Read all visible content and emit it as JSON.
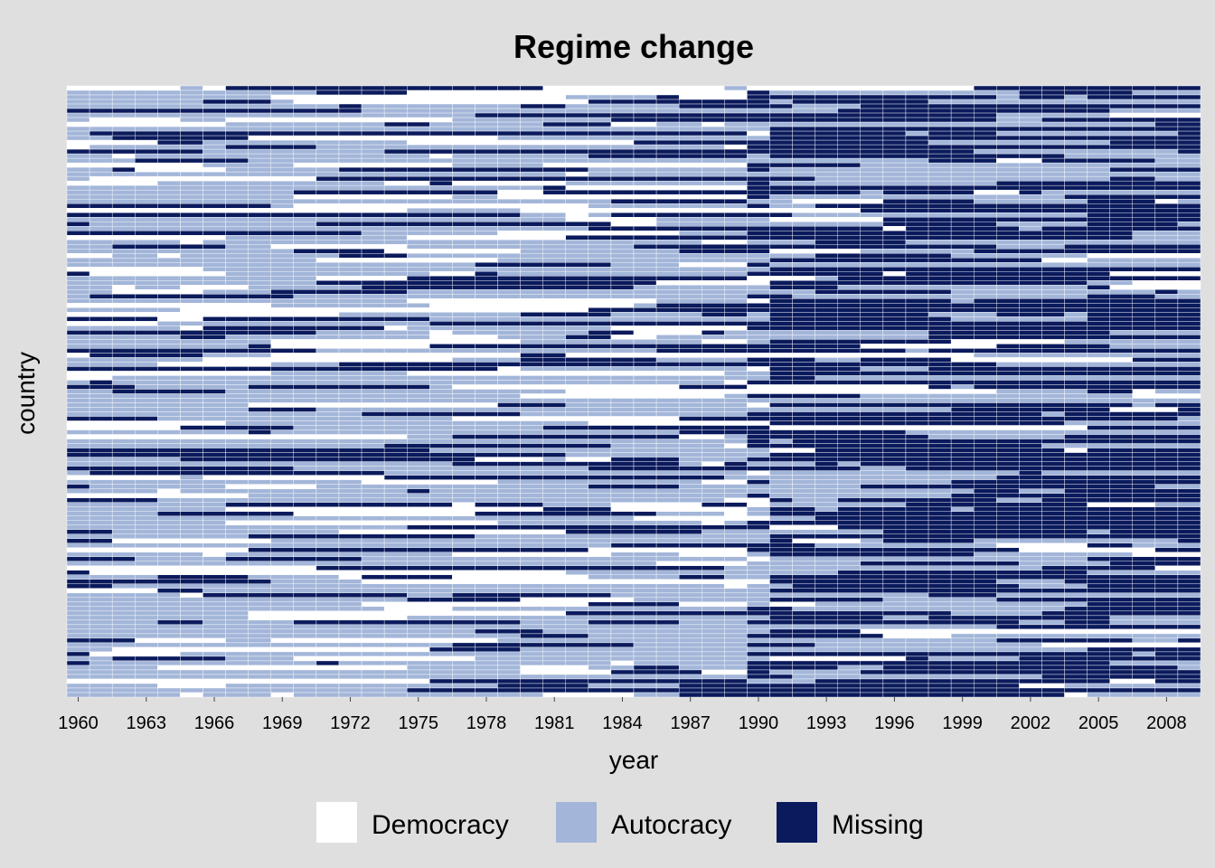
{
  "chart_data": {
    "type": "heatmap",
    "title": "Regime change",
    "xlabel": "year",
    "ylabel": "country",
    "x_range": [
      1960,
      2009
    ],
    "x_ticks": [
      "1960",
      "1963",
      "1966",
      "1969",
      "1972",
      "1975",
      "1978",
      "1981",
      "1984",
      "1987",
      "1990",
      "1993",
      "1996",
      "1999",
      "2002",
      "2005",
      "2008"
    ],
    "n_countries": 135,
    "categories": [
      "Democracy",
      "Autocracy",
      "Missing"
    ],
    "colors": {
      "Democracy": "#ffffff",
      "Autocracy": "#a3b6d9",
      "Missing": "#0a1a5c"
    },
    "grid": true,
    "legend_position": "bottom",
    "pattern": {
      "democracy_share_before_1990": 0.22,
      "autocracy_share_before_1990": 0.55,
      "missing_share_before_1990": 0.23,
      "democracy_share_after_1990": 0.06,
      "autocracy_share_after_1990": 0.34,
      "missing_share_after_1990": 0.6,
      "regime_change_year": 1990
    }
  },
  "legend": {
    "items": [
      {
        "key": "Democracy",
        "label": "Democracy",
        "color": "#ffffff"
      },
      {
        "key": "Autocracy",
        "label": "Autocracy",
        "color": "#a3b6d9"
      },
      {
        "key": "Missing",
        "label": "Missing",
        "color": "#0a1a5c"
      }
    ]
  },
  "colors": {
    "background": "#dfdfdf",
    "panel_grid": "#ffffff"
  }
}
